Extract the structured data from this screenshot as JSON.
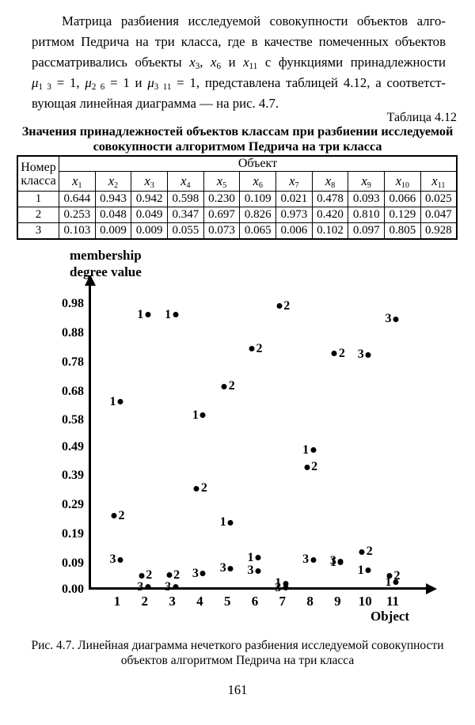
{
  "paragraph": {
    "lines": [
      [
        {
          "t": "Матрица разбиения исследуемой совокупности объектов алго-"
        }
      ],
      [
        {
          "t": "ритмом Педрича на три класса, где в качестве помеченных объектов"
        }
      ],
      [
        {
          "t": "рассматривались объекты "
        },
        {
          "t": "x",
          "s": "i"
        },
        {
          "t": "3",
          "s": "sub"
        },
        {
          "t": ", "
        },
        {
          "t": "x",
          "s": "i"
        },
        {
          "t": "6",
          "s": "sub"
        },
        {
          "t": " и "
        },
        {
          "t": "x",
          "s": "i"
        },
        {
          "t": "11",
          "s": "sub"
        },
        {
          "t": " с функциями принадлежности"
        }
      ],
      [
        {
          "t": "μ",
          "s": "i"
        },
        {
          "t": "1 3",
          "s": "sub"
        },
        {
          "t": " = 1, "
        },
        {
          "t": "μ",
          "s": "i"
        },
        {
          "t": "2 6",
          "s": "sub"
        },
        {
          "t": " = 1 и "
        },
        {
          "t": "μ",
          "s": "i"
        },
        {
          "t": "3 11",
          "s": "sub"
        },
        {
          "t": " = 1, представлена таблицей 4.12, а соответст-"
        }
      ],
      [
        {
          "t": "вующая линейная диаграмма — на рис. 4.7."
        }
      ]
    ]
  },
  "table": {
    "label": "Таблица 4.12",
    "title_lines": [
      "Значения принадлежностей объектов классам при разбиении исследуемой",
      "совокупности алгоритмом Педрича на три класса"
    ],
    "corner_header_lines": [
      "Номер",
      "класса"
    ],
    "group_header": "Объект",
    "object_headers": [
      [
        {
          "t": "x",
          "s": "i"
        },
        {
          "t": "1",
          "s": "sub"
        }
      ],
      [
        {
          "t": "x",
          "s": "i"
        },
        {
          "t": "2",
          "s": "sub"
        }
      ],
      [
        {
          "t": "x",
          "s": "i"
        },
        {
          "t": "3",
          "s": "sub"
        }
      ],
      [
        {
          "t": "x",
          "s": "i"
        },
        {
          "t": "4",
          "s": "sub"
        }
      ],
      [
        {
          "t": "x",
          "s": "i"
        },
        {
          "t": "5",
          "s": "sub"
        }
      ],
      [
        {
          "t": "x",
          "s": "i"
        },
        {
          "t": "6",
          "s": "sub"
        }
      ],
      [
        {
          "t": "x",
          "s": "i"
        },
        {
          "t": "7",
          "s": "sub"
        }
      ],
      [
        {
          "t": "x",
          "s": "i"
        },
        {
          "t": "8",
          "s": "sub"
        }
      ],
      [
        {
          "t": "x",
          "s": "i"
        },
        {
          "t": "9",
          "s": "sub"
        }
      ],
      [
        {
          "t": "x",
          "s": "i"
        },
        {
          "t": "10",
          "s": "sub"
        }
      ],
      [
        {
          "t": "x",
          "s": "i"
        },
        {
          "t": "11",
          "s": "sub"
        }
      ]
    ],
    "rows": [
      {
        "class_label": "1",
        "values": [
          "0.644",
          "0.943",
          "0.942",
          "0.598",
          "0.230",
          "0.109",
          "0.021",
          "0.478",
          "0.093",
          "0.066",
          "0.025"
        ]
      },
      {
        "class_label": "2",
        "values": [
          "0.253",
          "0.048",
          "0.049",
          "0.347",
          "0.697",
          "0.826",
          "0.973",
          "0.420",
          "0.810",
          "0.129",
          "0.047"
        ]
      },
      {
        "class_label": "3",
        "values": [
          "0.103",
          "0.009",
          "0.009",
          "0.055",
          "0.073",
          "0.065",
          "0.006",
          "0.102",
          "0.097",
          "0.805",
          "0.928"
        ]
      }
    ]
  },
  "chart_data": {
    "type": "scatter",
    "title": "",
    "ylabel_lines": [
      "membership",
      "degree value"
    ],
    "ylabel": "membership degree value",
    "xlabel": "Object",
    "x": [
      1,
      2,
      3,
      4,
      5,
      6,
      7,
      8,
      9,
      10,
      11
    ],
    "ytick_labels": [
      "0.98",
      "0.88",
      "0.78",
      "0.68",
      "0.58",
      "0.49",
      "0.39",
      "0.29",
      "0.19",
      "0.09",
      "0.00"
    ],
    "ylim": [
      0,
      0.98
    ],
    "grid": false,
    "legend": "point labels 1/2/3 denote class number",
    "series": [
      {
        "name": "1",
        "label_side": "left",
        "values": [
          0.644,
          0.943,
          0.942,
          0.598,
          0.23,
          0.109,
          0.021,
          0.478,
          0.093,
          0.066,
          0.025
        ]
      },
      {
        "name": "2",
        "label_side": "right",
        "values": [
          0.253,
          0.048,
          0.049,
          0.347,
          0.697,
          0.826,
          0.973,
          0.42,
          0.81,
          0.129,
          0.047
        ]
      },
      {
        "name": "3",
        "label_side": "left",
        "values": [
          0.103,
          0.009,
          0.009,
          0.055,
          0.073,
          0.065,
          0.006,
          0.102,
          0.097,
          0.805,
          0.928
        ]
      }
    ]
  },
  "figure": {
    "caption_lines": [
      "Рис. 4.7. Линейная диаграмма нечеткого разбиения исследуемой совокупности",
      "объектов алгоритмом Педрича на три класса"
    ]
  },
  "page_number": "161"
}
